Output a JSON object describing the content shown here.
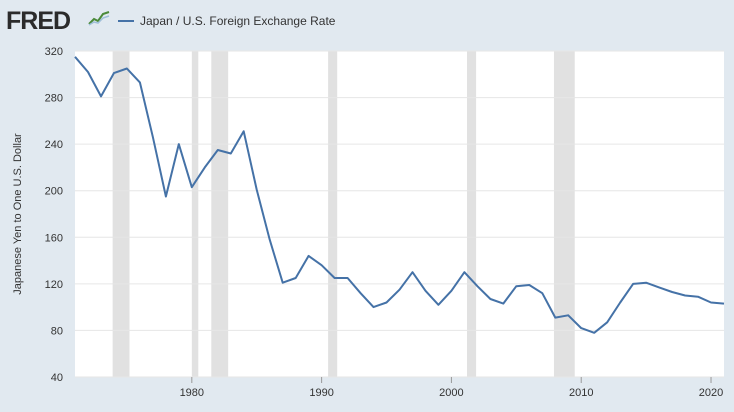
{
  "header": {
    "logo_text": "FRED",
    "logo_icon": "trend-line-icon"
  },
  "colors": {
    "background": "#e1e9f0",
    "plot_background": "#ffffff",
    "series_line": "#4572a7",
    "recession_shade": "#e1e1e1",
    "gridline": "#e6e6e6"
  },
  "chart_data": {
    "type": "line",
    "title": "",
    "xlabel": "",
    "ylabel": "Japanese Yen to One U.S. Dollar",
    "xlim": [
      1971,
      2021
    ],
    "ylim": [
      40,
      320
    ],
    "x_ticks": [
      1980,
      1990,
      2000,
      2010,
      2020
    ],
    "y_ticks": [
      40,
      80,
      120,
      160,
      200,
      240,
      280,
      320
    ],
    "grid": "horizontal",
    "legend_position": "top-left",
    "series": [
      {
        "name": "Japan / U.S. Foreign Exchange Rate",
        "x": [
          1971,
          1972,
          1973,
          1974,
          1975,
          1976,
          1977,
          1978,
          1979,
          1980,
          1981,
          1982,
          1983,
          1984,
          1985,
          1986,
          1987,
          1988,
          1989,
          1990,
          1991,
          1992,
          1993,
          1994,
          1995,
          1996,
          1997,
          1998,
          1999,
          2000,
          2001,
          2002,
          2003,
          2004,
          2005,
          2006,
          2007,
          2008,
          2009,
          2010,
          2011,
          2012,
          2013,
          2014,
          2015,
          2016,
          2017,
          2018,
          2019,
          2020,
          2021
        ],
        "values": [
          315,
          302,
          281,
          301,
          305,
          293,
          246,
          195,
          240,
          203,
          220,
          235,
          232,
          251,
          201,
          158,
          121,
          125,
          144,
          136,
          125,
          125,
          112,
          100,
          104,
          115,
          130,
          114,
          102,
          114,
          130,
          118,
          107,
          103,
          118,
          119,
          112,
          91,
          93,
          82,
          78,
          87,
          104,
          120,
          121,
          117,
          113,
          110,
          109,
          104,
          103
        ]
      }
    ],
    "recessions": [
      [
        1973.9,
        1975.2
      ],
      [
        1980.0,
        1980.5
      ],
      [
        1981.5,
        1982.8
      ],
      [
        1990.5,
        1991.2
      ],
      [
        2001.2,
        2001.9
      ],
      [
        2007.9,
        2009.5
      ]
    ]
  }
}
